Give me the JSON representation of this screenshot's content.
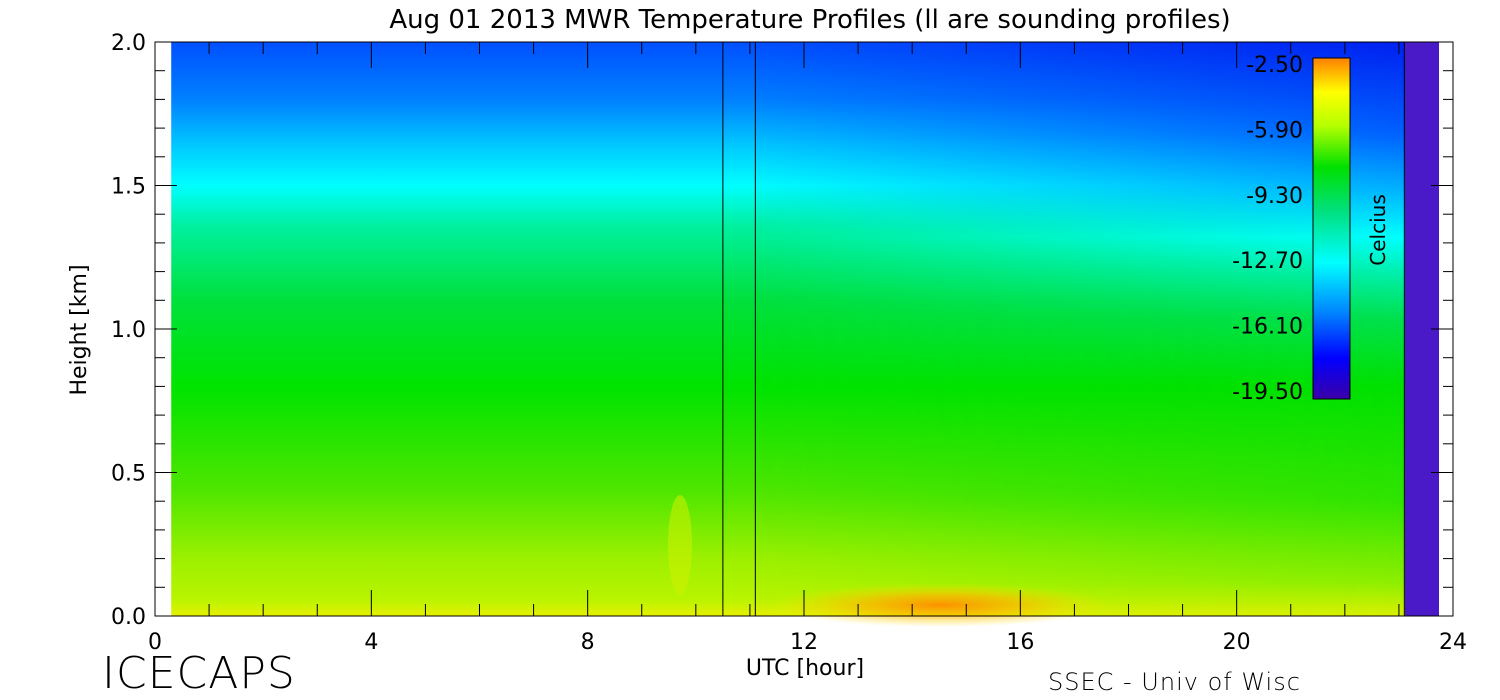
{
  "chart_data": {
    "type": "heatmap",
    "title": "Aug 01 2013 MWR Temperature Profiles (ll are sounding profiles)",
    "xlabel": "UTC [hour]",
    "ylabel": "Height [km]",
    "xlim": [
      0,
      24
    ],
    "ylim": [
      0.0,
      2.0
    ],
    "x_ticks": [
      "0",
      "4",
      "8",
      "12",
      "16",
      "20",
      "24"
    ],
    "y_ticks": [
      "0.0",
      "0.5",
      "1.0",
      "1.5",
      "2.0"
    ],
    "sounding_times_hour": [
      10.5,
      11.1,
      23.1
    ],
    "data_coverage_hours": [
      0.3,
      23.7
    ],
    "colorbar": {
      "label": "Celcius",
      "range": [
        -19.5,
        -2.5
      ],
      "ticks": [
        "-2.50",
        "-5.90",
        "-9.30",
        "-12.70",
        "-16.10",
        "-19.50"
      ],
      "colormap": [
        "#3b00a8",
        "#0000ff",
        "#0080ff",
        "#00ffff",
        "#00e04a",
        "#00e000",
        "#b4ff00",
        "#ffff00",
        "#ff8000"
      ]
    },
    "temperature_profile_typical": {
      "height_km": [
        0.0,
        0.1,
        0.3,
        0.5,
        0.8,
        1.0,
        1.3,
        1.5,
        1.7,
        2.0
      ],
      "celsius": [
        -6.0,
        -7.0,
        -7.5,
        -8.3,
        -9.0,
        -9.5,
        -12.0,
        -13.5,
        -16.0,
        -18.0
      ]
    }
  },
  "footer": {
    "left_logo": "ICECAPS",
    "right_credit": "SSEC - Univ of Wisc"
  }
}
